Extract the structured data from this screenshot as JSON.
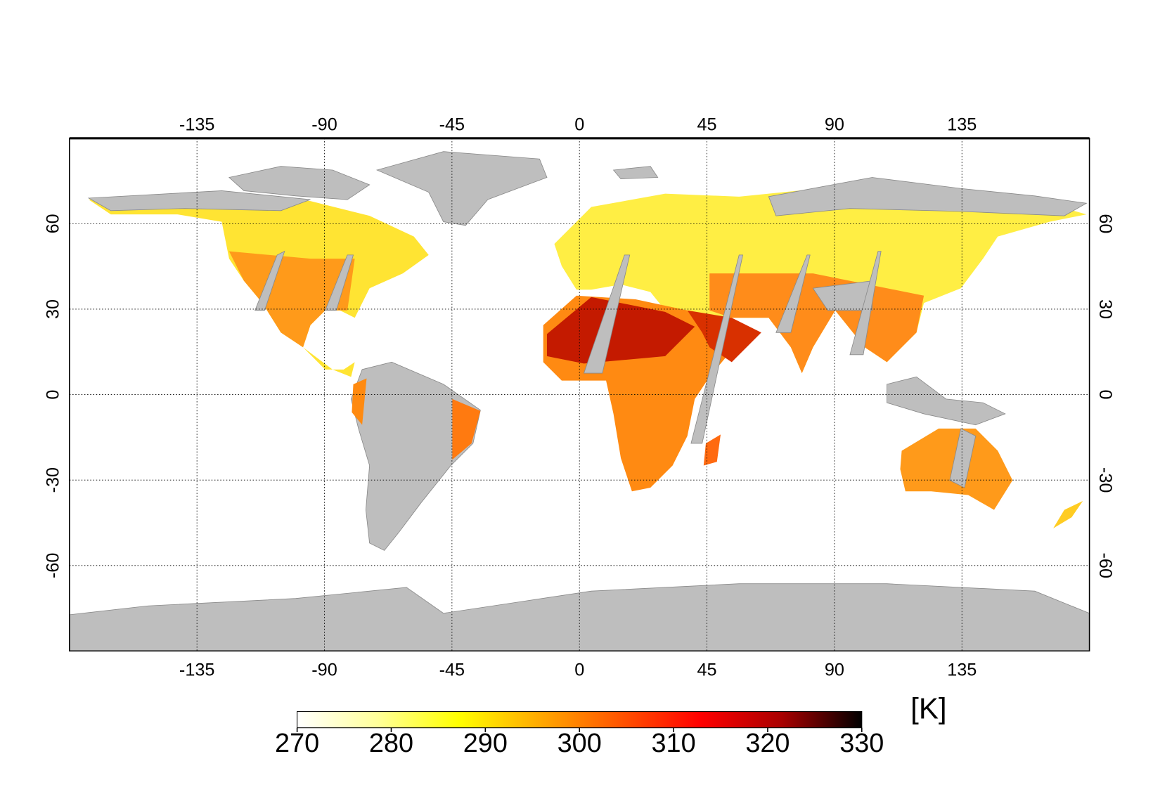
{
  "map": {
    "lon_range": [
      -180,
      180
    ],
    "lat_range": [
      -90,
      90
    ],
    "lon_ticks": [
      -135,
      -90,
      -45,
      0,
      45,
      90,
      135
    ],
    "lat_ticks": [
      60,
      30,
      0,
      -30,
      -60
    ],
    "colorbar": {
      "range": [
        270,
        330
      ],
      "ticks": [
        270,
        280,
        290,
        300,
        310,
        320,
        330
      ],
      "unit": "[K]",
      "colors": [
        "#ffffff",
        "#ffff99",
        "#ffff00",
        "#ffaa00",
        "#ff5500",
        "#ff0000",
        "#aa0000",
        "#000000"
      ]
    }
  }
}
